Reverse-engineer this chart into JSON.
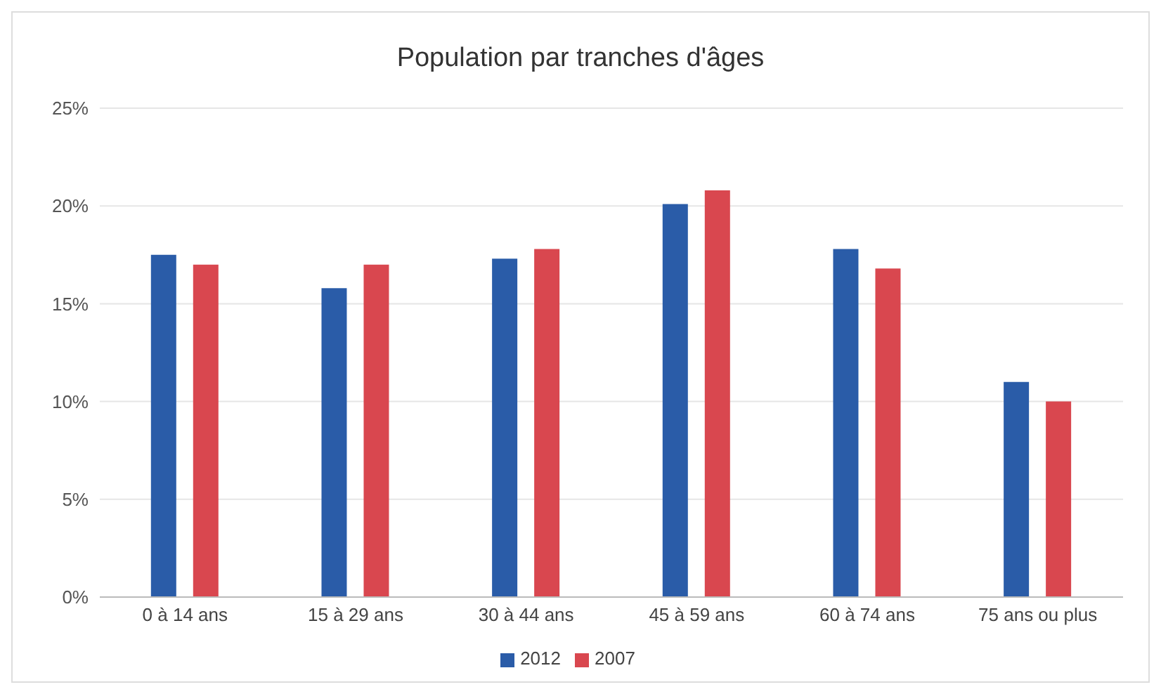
{
  "chart_data": {
    "type": "bar",
    "title": "Population par tranches d'âges",
    "categories": [
      "0 à 14 ans",
      "15 à 29 ans",
      "30 à 44 ans",
      "45 à 59 ans",
      "60 à 74 ans",
      "75 ans ou plus"
    ],
    "series": [
      {
        "name": "2012",
        "color": "#2a5ca8",
        "values": [
          17.5,
          15.8,
          17.3,
          20.1,
          17.8,
          11.0
        ]
      },
      {
        "name": "2007",
        "color": "#d9474f",
        "values": [
          17.0,
          17.0,
          17.8,
          20.8,
          16.8,
          10.0
        ]
      }
    ],
    "ylim": [
      0,
      25
    ],
    "yticks": [
      {
        "value": 0,
        "label": "0%"
      },
      {
        "value": 5,
        "label": "5%"
      },
      {
        "value": 10,
        "label": "10%"
      },
      {
        "value": 15,
        "label": "15%"
      },
      {
        "value": 20,
        "label": "20%"
      },
      {
        "value": 25,
        "label": "25%"
      }
    ],
    "grid": "y",
    "legend": "bottom"
  }
}
